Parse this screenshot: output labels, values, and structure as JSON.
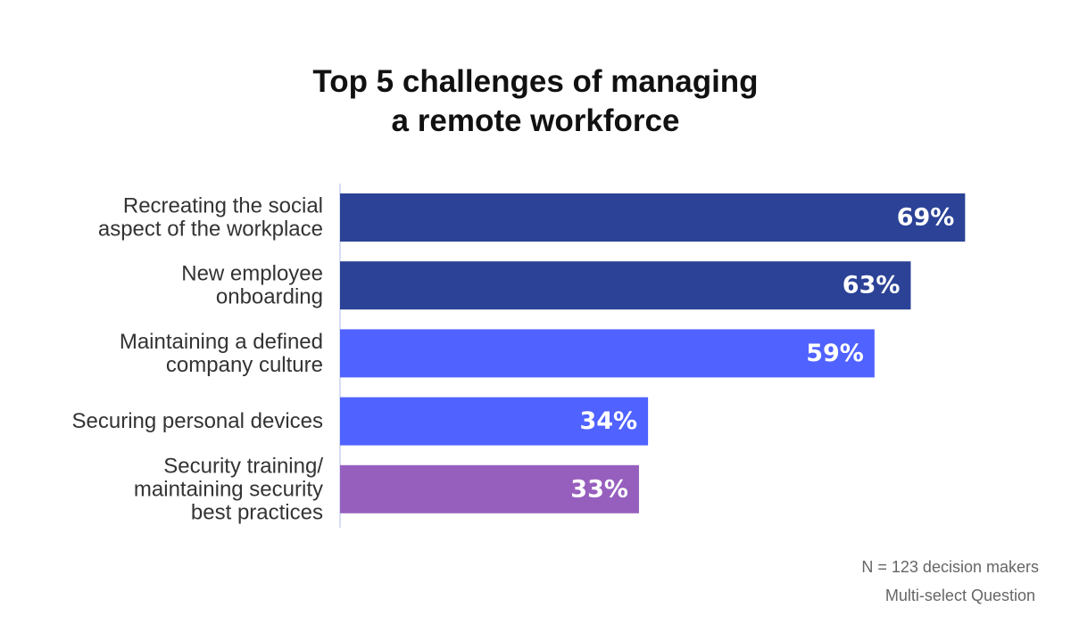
{
  "chart_data": {
    "type": "bar",
    "orientation": "horizontal",
    "title_lines": [
      "Top 5 challenges of managing",
      "a remote workforce"
    ],
    "categories": [
      [
        "Recreating the social",
        "aspect of the workplace"
      ],
      [
        "New employee",
        "onboarding"
      ],
      [
        "Maintaining a defined",
        "company culture"
      ],
      [
        "Securing personal devices"
      ],
      [
        "Security training/",
        "maintaining security",
        "best practices"
      ]
    ],
    "values": [
      69,
      63,
      59,
      34,
      33
    ],
    "value_labels": [
      "69%",
      "63%",
      "59%",
      "34%",
      "33%"
    ],
    "unit": "%",
    "xlim": [
      0,
      100
    ],
    "colors": [
      "#2b4296",
      "#2b4296",
      "#5062ff",
      "#5062ff",
      "#965fbd"
    ],
    "grid": false,
    "legend": "none"
  },
  "footnotes": {
    "sample": "N = 123 decision makers",
    "question_type": "Multi-select Question"
  }
}
